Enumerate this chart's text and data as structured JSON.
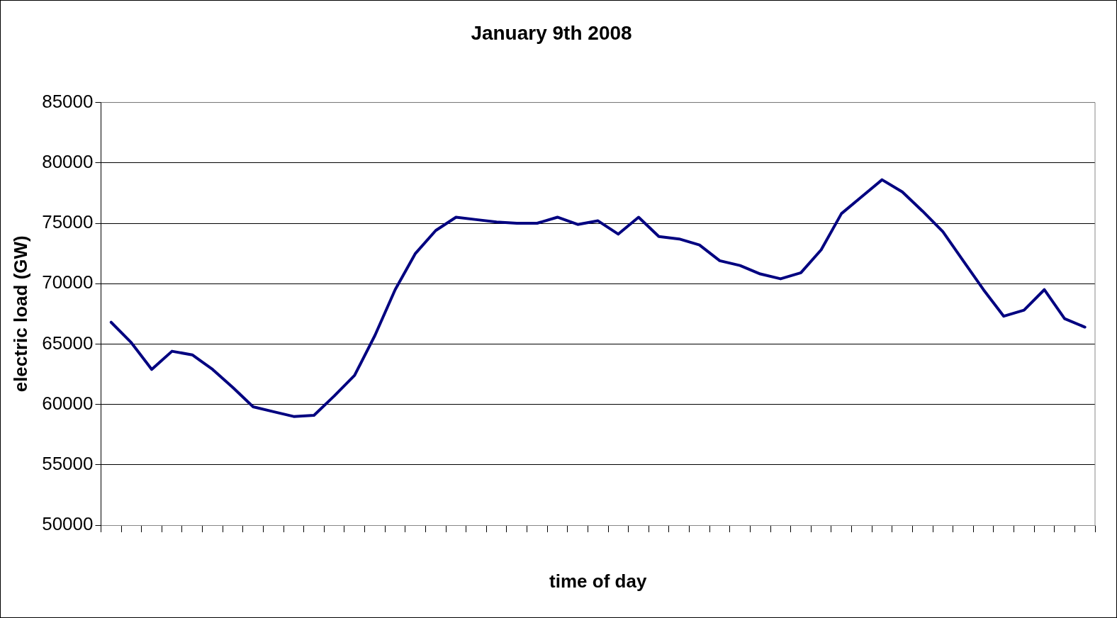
{
  "chart_data": {
    "type": "line",
    "title": "January 9th 2008",
    "xlabel": "time of day",
    "ylabel": "electric load (GW)",
    "categories": [
      null,
      null,
      null,
      null,
      null,
      null,
      null,
      null,
      null,
      null,
      null,
      null,
      null,
      null,
      null,
      null,
      null,
      null,
      null,
      null,
      null,
      null,
      null,
      null,
      null,
      null,
      null,
      null,
      null,
      null,
      null,
      null,
      null,
      null,
      null,
      null,
      null,
      null,
      null,
      null,
      null,
      null,
      null,
      null,
      null,
      null,
      null,
      null,
      null
    ],
    "series": [
      {
        "color": "#000080",
        "values": [
          66800,
          65100,
          62900,
          64400,
          64100,
          62900,
          61400,
          59800,
          59400,
          59000,
          59100,
          60700,
          62400,
          65700,
          69500,
          72500,
          74400,
          75500,
          75300,
          75100,
          75000,
          75000,
          75500,
          74900,
          75200,
          74100,
          75500,
          73900,
          73700,
          73200,
          71900,
          71500,
          70800,
          70400,
          70900,
          72800,
          75800,
          77200,
          78600,
          77600,
          76000,
          74300,
          71900,
          69500,
          67300,
          67800,
          69500,
          67100,
          66400
        ]
      }
    ],
    "ylim": [
      50000,
      85000
    ],
    "yticks": [
      50000,
      55000,
      60000,
      65000,
      70000,
      75000,
      80000,
      85000
    ],
    "grid": "y",
    "legend": false,
    "marker": "none",
    "line_style": "solid"
  }
}
